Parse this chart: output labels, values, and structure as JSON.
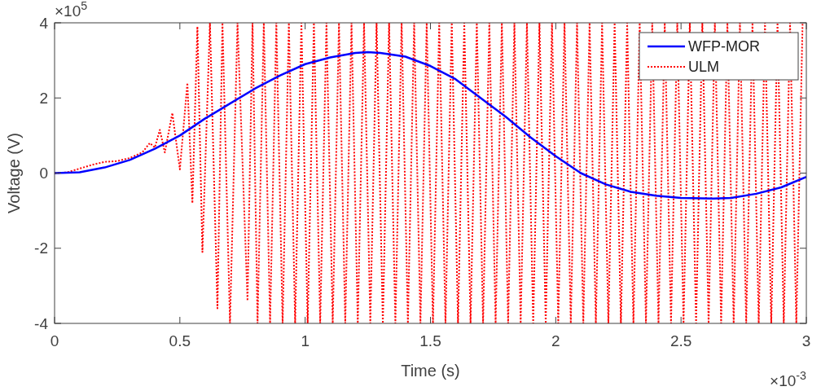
{
  "chart_data": {
    "type": "line",
    "xlabel": "Time (s)",
    "ylabel": "Voltage (V)",
    "annotations": [
      "×10$^{5}$",
      "×10$^{-3}$"
    ],
    "xlim": [
      0,
      3
    ],
    "xticks": [
      0,
      0.5,
      1,
      1.5,
      2,
      2.5,
      3
    ],
    "ylim": [
      -4,
      4
    ],
    "yticks": [
      -4,
      -2,
      0,
      2,
      4
    ],
    "grid": false,
    "legend": "top right",
    "series": [
      {
        "name": "WFP-MOR",
        "color": "#0000ff",
        "line_style": "solid",
        "x": [
          0,
          0.1,
          0.2,
          0.3,
          0.4,
          0.5,
          0.6,
          0.7,
          0.8,
          0.9,
          1.0,
          1.1,
          1.2,
          1.25,
          1.3,
          1.4,
          1.5,
          1.6,
          1.7,
          1.8,
          1.9,
          2.0,
          2.1,
          2.2,
          2.3,
          2.4,
          2.5,
          2.63,
          2.7,
          2.8,
          2.9,
          3.0
        ],
        "values": [
          0,
          0.02,
          0.15,
          0.35,
          0.65,
          1.0,
          1.45,
          1.85,
          2.25,
          2.6,
          2.9,
          3.08,
          3.2,
          3.22,
          3.2,
          3.1,
          2.85,
          2.5,
          2.0,
          1.5,
          0.95,
          0.45,
          0.0,
          -0.3,
          -0.5,
          -0.6,
          -0.66,
          -0.68,
          -0.66,
          -0.55,
          -0.38,
          -0.1
        ]
      },
      {
        "name": "ULM",
        "color": "#ff0000",
        "line_style": "dotted",
        "x": [
          0,
          0.05,
          0.1,
          0.15,
          0.2,
          0.25,
          0.3,
          0.35,
          0.38,
          0.4,
          0.42,
          0.44,
          0.47,
          0.5,
          0.53,
          0.55,
          0.57,
          0.59,
          0.62,
          0.65,
          0.67,
          0.7,
          0.73,
          0.77,
          0.79,
          0.81,
          0.835,
          0.86,
          0.885,
          0.91,
          0.935,
          0.96,
          0.985,
          1.01,
          1.035,
          1.06,
          1.085,
          1.11,
          1.135,
          1.16,
          1.185,
          1.21,
          1.235,
          1.26,
          1.285,
          1.31,
          1.335,
          1.36,
          1.385,
          1.41,
          1.435,
          1.46,
          1.485,
          1.51,
          1.535,
          1.56,
          1.585,
          1.61,
          1.635,
          1.66,
          1.685,
          1.71,
          1.735,
          1.76,
          1.785,
          1.81,
          1.835,
          1.86,
          1.885,
          1.91,
          1.935,
          1.96,
          1.985,
          2.01,
          2.035,
          2.06,
          2.085,
          2.11,
          2.135,
          2.16,
          2.185,
          2.21,
          2.235,
          2.26,
          2.285,
          2.31,
          2.335,
          2.36,
          2.385,
          2.41,
          2.435,
          2.46,
          2.485,
          2.51,
          2.535,
          2.56,
          2.585,
          2.61,
          2.635,
          2.66,
          2.685,
          2.71,
          2.735,
          2.76,
          2.785,
          2.81,
          2.835,
          2.86,
          2.885,
          2.91,
          2.935,
          2.96,
          2.985
        ],
        "values": [
          0,
          0.02,
          0.12,
          0.22,
          0.3,
          0.32,
          0.4,
          0.55,
          0.8,
          0.68,
          1.15,
          0.55,
          1.6,
          0.1,
          2.4,
          -0.8,
          3.9,
          -2.1,
          4,
          -3.6,
          4,
          -4,
          4,
          -3.4,
          4,
          -4,
          4,
          -4,
          4,
          -4,
          4,
          -4,
          4,
          -4,
          4,
          -4,
          4,
          -4,
          4,
          -4,
          4,
          -4,
          4,
          -4,
          4,
          -4,
          4,
          -4,
          4,
          -4,
          4,
          -4,
          4,
          -4,
          4,
          -4,
          4,
          -4,
          4,
          -4,
          4,
          -4,
          4,
          -4,
          4,
          -4,
          4,
          -4,
          4,
          -4,
          4,
          -4,
          4,
          -4,
          4,
          -4,
          4,
          -4,
          4,
          -4,
          4,
          -4,
          4,
          -4,
          4,
          -4,
          4,
          -4,
          4,
          -4,
          4,
          -4,
          4,
          -4,
          4,
          -4,
          4,
          -4,
          4,
          -4,
          4,
          -4,
          4,
          -4,
          4,
          -4,
          4,
          -4,
          4,
          -4,
          4,
          -4,
          4
        ]
      }
    ]
  }
}
